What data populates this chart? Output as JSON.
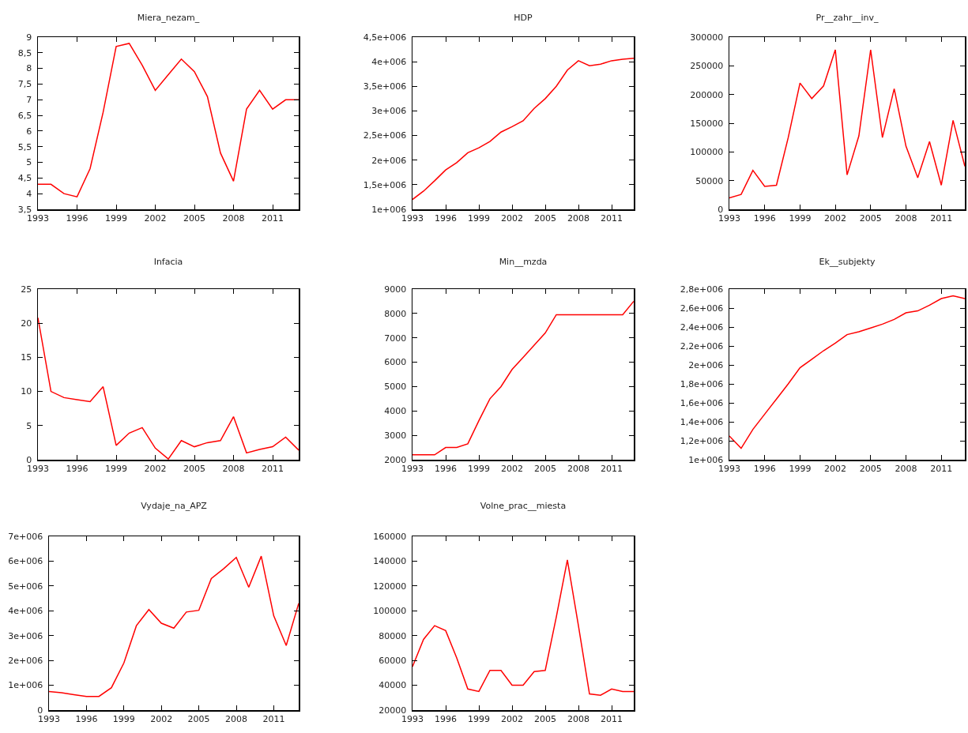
{
  "chart_data": [
    {
      "type": "line",
      "title": "Miera_nezam_",
      "x": [
        1993,
        1994,
        1995,
        1996,
        1997,
        1998,
        1999,
        2000,
        2001,
        2002,
        2003,
        2004,
        2005,
        2006,
        2007,
        2008,
        2009,
        2010,
        2011,
        2012,
        2013
      ],
      "series": [
        {
          "color": "#ff0000",
          "values": [
            4.3,
            4.3,
            4.0,
            3.9,
            4.8,
            6.6,
            8.7,
            8.8,
            8.1,
            7.3,
            7.8,
            8.3,
            7.9,
            7.1,
            5.3,
            4.4,
            6.7,
            7.3,
            6.7,
            7.0,
            7.0
          ]
        }
      ],
      "xlim": [
        1993,
        2013
      ],
      "xticks": [
        1993,
        1996,
        1999,
        2002,
        2005,
        2008,
        2011
      ],
      "ylim": [
        3.5,
        9
      ],
      "yticks": [
        {
          "value": 3.5,
          "label": "3,5"
        },
        4,
        {
          "value": 4.5,
          "label": "4,5"
        },
        5,
        {
          "value": 5.5,
          "label": "5,5"
        },
        6,
        {
          "value": 6.5,
          "label": "6,5"
        },
        7,
        {
          "value": 7.5,
          "label": "7,5"
        },
        8,
        {
          "value": 8.5,
          "label": "8,5"
        },
        9
      ]
    },
    {
      "type": "line",
      "title": "HDP",
      "x": [
        1993,
        1994,
        1995,
        1996,
        1997,
        1998,
        1999,
        2000,
        2001,
        2002,
        2003,
        2004,
        2005,
        2006,
        2007,
        2008,
        2009,
        2010,
        2011,
        2012,
        2013
      ],
      "series": [
        {
          "color": "#ff0000",
          "values": [
            1200000,
            1370000,
            1580000,
            1800000,
            1950000,
            2150000,
            2250000,
            2380000,
            2570000,
            2680000,
            2800000,
            3050000,
            3250000,
            3500000,
            3830000,
            4020000,
            3920000,
            3950000,
            4020000,
            4050000,
            4070000
          ]
        }
      ],
      "xlim": [
        1993,
        2013
      ],
      "xticks": [
        1993,
        1996,
        1999,
        2002,
        2005,
        2008,
        2011
      ],
      "ylim": [
        1000000,
        4500000
      ],
      "yticks": [
        {
          "value": 1000000,
          "label": "1e+006"
        },
        {
          "value": 1500000,
          "label": "1,5e+006"
        },
        {
          "value": 2000000,
          "label": "2e+006"
        },
        {
          "value": 2500000,
          "label": "2,5e+006"
        },
        {
          "value": 3000000,
          "label": "3e+006"
        },
        {
          "value": 3500000,
          "label": "3,5e+006"
        },
        {
          "value": 4000000,
          "label": "4e+006"
        },
        {
          "value": 4500000,
          "label": "4,5e+006"
        }
      ]
    },
    {
      "type": "line",
      "title": "Pr__zahr__inv_",
      "x": [
        1993,
        1994,
        1995,
        1996,
        1997,
        1998,
        1999,
        2000,
        2001,
        2002,
        2003,
        2004,
        2005,
        2006,
        2007,
        2008,
        2009,
        2010,
        2011,
        2012,
        2013
      ],
      "series": [
        {
          "color": "#ff0000",
          "values": [
            20000,
            26000,
            68000,
            40000,
            42000,
            125000,
            220000,
            193000,
            215000,
            278000,
            60000,
            128000,
            278000,
            125000,
            210000,
            110000,
            55000,
            118000,
            42000,
            155000,
            75000
          ]
        }
      ],
      "xlim": [
        1993,
        2013
      ],
      "xticks": [
        1993,
        1996,
        1999,
        2002,
        2005,
        2008,
        2011
      ],
      "ylim": [
        0,
        300000
      ],
      "yticks": [
        0,
        50000,
        100000,
        150000,
        200000,
        250000,
        300000
      ]
    },
    {
      "type": "line",
      "title": "Infacia",
      "x": [
        1993,
        1994,
        1995,
        1996,
        1997,
        1998,
        1999,
        2000,
        2001,
        2002,
        2003,
        2004,
        2005,
        2006,
        2007,
        2008,
        2009,
        2010,
        2011,
        2012,
        2013
      ],
      "series": [
        {
          "color": "#ff0000",
          "values": [
            20.8,
            10,
            9.1,
            8.8,
            8.5,
            10.7,
            2.1,
            3.9,
            4.7,
            1.7,
            0.1,
            2.8,
            1.9,
            2.5,
            2.8,
            6.3,
            1.0,
            1.5,
            1.9,
            3.3,
            1.4
          ]
        }
      ],
      "xlim": [
        1993,
        2013
      ],
      "xticks": [
        1993,
        1996,
        1999,
        2002,
        2005,
        2008,
        2011
      ],
      "ylim": [
        0,
        25
      ],
      "yticks": [
        0,
        5,
        10,
        15,
        20,
        25
      ]
    },
    {
      "type": "line",
      "title": "Min__mzda",
      "x": [
        1993,
        1994,
        1995,
        1996,
        1997,
        1998,
        1999,
        2000,
        2001,
        2002,
        2003,
        2004,
        2005,
        2006,
        2007,
        2008,
        2009,
        2010,
        2011,
        2012,
        2013
      ],
      "series": [
        {
          "color": "#ff0000",
          "values": [
            2200,
            2200,
            2200,
            2500,
            2500,
            2650,
            3600,
            4500,
            5000,
            5700,
            6200,
            6700,
            7200,
            7950,
            7950,
            7950,
            7950,
            7950,
            7950,
            7950,
            8500
          ]
        }
      ],
      "xlim": [
        1993,
        2013
      ],
      "xticks": [
        1993,
        1996,
        1999,
        2002,
        2005,
        2008,
        2011
      ],
      "ylim": [
        2000,
        9000
      ],
      "yticks": [
        2000,
        3000,
        4000,
        5000,
        6000,
        7000,
        8000,
        9000
      ]
    },
    {
      "type": "line",
      "title": "Ek__subjekty",
      "x": [
        1993,
        1994,
        1995,
        1996,
        1997,
        1998,
        1999,
        2000,
        2001,
        2002,
        2003,
        2004,
        2005,
        2006,
        2007,
        2008,
        2009,
        2010,
        2011,
        2012,
        2013
      ],
      "series": [
        {
          "color": "#ff0000",
          "values": [
            1250000,
            1120000,
            1320000,
            1480000,
            1640000,
            1800000,
            1970000,
            2060000,
            2150000,
            2230000,
            2320000,
            2350000,
            2390000,
            2430000,
            2480000,
            2550000,
            2570000,
            2630000,
            2700000,
            2730000,
            2700000
          ]
        }
      ],
      "xlim": [
        1993,
        2013
      ],
      "xticks": [
        1993,
        1996,
        1999,
        2002,
        2005,
        2008,
        2011
      ],
      "ylim": [
        1000000,
        2800000
      ],
      "yticks": [
        {
          "value": 1000000,
          "label": "1e+006"
        },
        {
          "value": 1200000,
          "label": "1,2e+006"
        },
        {
          "value": 1400000,
          "label": "1,4e+006"
        },
        {
          "value": 1600000,
          "label": "1,6e+006"
        },
        {
          "value": 1800000,
          "label": "1,8e+006"
        },
        {
          "value": 2000000,
          "label": "2e+006"
        },
        {
          "value": 2200000,
          "label": "2,2e+006"
        },
        {
          "value": 2400000,
          "label": "2,4e+006"
        },
        {
          "value": 2600000,
          "label": "2,6e+006"
        },
        {
          "value": 2800000,
          "label": "2,8e+006"
        }
      ]
    },
    {
      "type": "line",
      "title": "Vydaje_na_APZ",
      "x": [
        1993,
        1994,
        1995,
        1996,
        1997,
        1998,
        1999,
        2000,
        2001,
        2002,
        2003,
        2004,
        2005,
        2006,
        2007,
        2008,
        2009,
        2010,
        2011,
        2012,
        2013
      ],
      "series": [
        {
          "color": "#ff0000",
          "values": [
            750000,
            700000,
            620000,
            550000,
            550000,
            900000,
            1900000,
            3400000,
            4050000,
            3500000,
            3300000,
            3950000,
            4020000,
            5300000,
            5700000,
            6150000,
            4950000,
            6200000,
            3800000,
            2600000,
            4300000
          ]
        }
      ],
      "xlim": [
        1993,
        2013
      ],
      "xticks": [
        1993,
        1996,
        1999,
        2002,
        2005,
        2008,
        2011
      ],
      "ylim": [
        0,
        7000000
      ],
      "yticks": [
        0,
        {
          "value": 1000000,
          "label": "1e+006"
        },
        {
          "value": 2000000,
          "label": "2e+006"
        },
        {
          "value": 3000000,
          "label": "3e+006"
        },
        {
          "value": 4000000,
          "label": "4e+006"
        },
        {
          "value": 5000000,
          "label": "5e+006"
        },
        {
          "value": 6000000,
          "label": "6e+006"
        },
        {
          "value": 7000000,
          "label": "7e+006"
        }
      ]
    },
    {
      "type": "line",
      "title": "Volne_prac__miesta",
      "x": [
        1993,
        1994,
        1995,
        1996,
        1997,
        1998,
        1999,
        2000,
        2001,
        2002,
        2003,
        2004,
        2005,
        2006,
        2007,
        2008,
        2009,
        2010,
        2011,
        2012,
        2013
      ],
      "series": [
        {
          "color": "#ff0000",
          "values": [
            55000,
            77000,
            88000,
            84000,
            62000,
            37000,
            35000,
            52000,
            52000,
            40000,
            40000,
            51000,
            52000,
            95000,
            141000,
            88000,
            33000,
            32000,
            37000,
            35000,
            35000
          ]
        }
      ],
      "xlim": [
        1993,
        2013
      ],
      "xticks": [
        1993,
        1996,
        1999,
        2002,
        2005,
        2008,
        2011
      ],
      "ylim": [
        20000,
        160000
      ],
      "yticks": [
        20000,
        40000,
        60000,
        80000,
        100000,
        120000,
        140000,
        160000
      ]
    }
  ]
}
